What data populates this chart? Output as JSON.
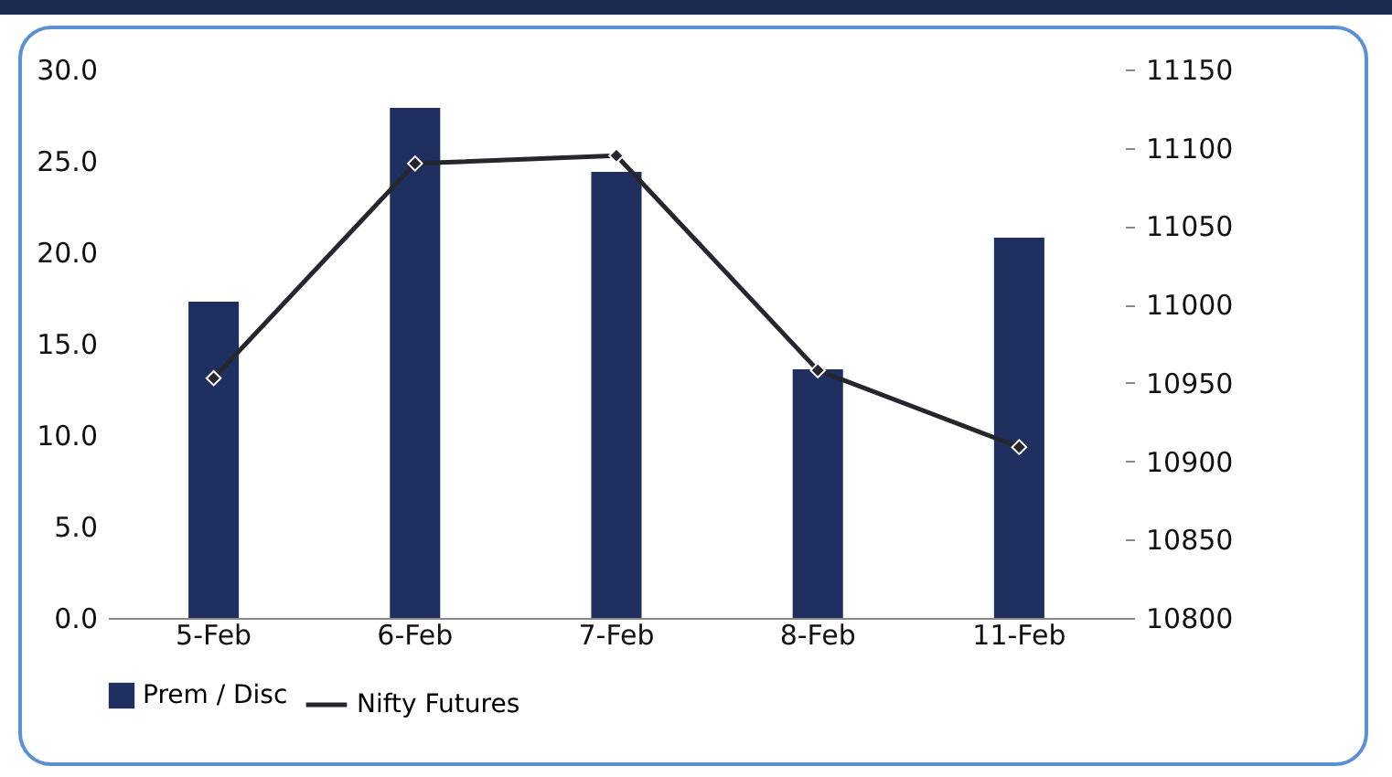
{
  "chart_data": {
    "type": "bar",
    "categories": [
      "5-Feb",
      "6-Feb",
      "7-Feb",
      "8-Feb",
      "11-Feb"
    ],
    "series": [
      {
        "name": "Prem / Disc",
        "color": "#1f3060",
        "values": [
          17.3,
          27.9,
          24.4,
          13.6,
          20.8
        ]
      },
      {
        "name": "Nifty Futures",
        "type": "line",
        "axis": "y2",
        "color": "#26262e",
        "values": [
          10953,
          11090,
          11095,
          10958,
          10909
        ]
      }
    ],
    "ylim": [
      0,
      30
    ],
    "yticks": [
      {
        "value": 0,
        "label": "0.0"
      },
      {
        "value": 5,
        "label": "5.0"
      },
      {
        "value": 10,
        "label": "10.0"
      },
      {
        "value": 15,
        "label": "15.0"
      },
      {
        "value": 20,
        "label": "20.0"
      },
      {
        "value": 25,
        "label": "25.0"
      },
      {
        "value": 30,
        "label": "30.0"
      }
    ],
    "y2lim": [
      10800,
      11150
    ],
    "y2ticks": [
      10800,
      10850,
      10900,
      10950,
      11000,
      11050,
      11100,
      11150
    ],
    "grid": false,
    "legend": "bottom",
    "marker": "diamond"
  }
}
